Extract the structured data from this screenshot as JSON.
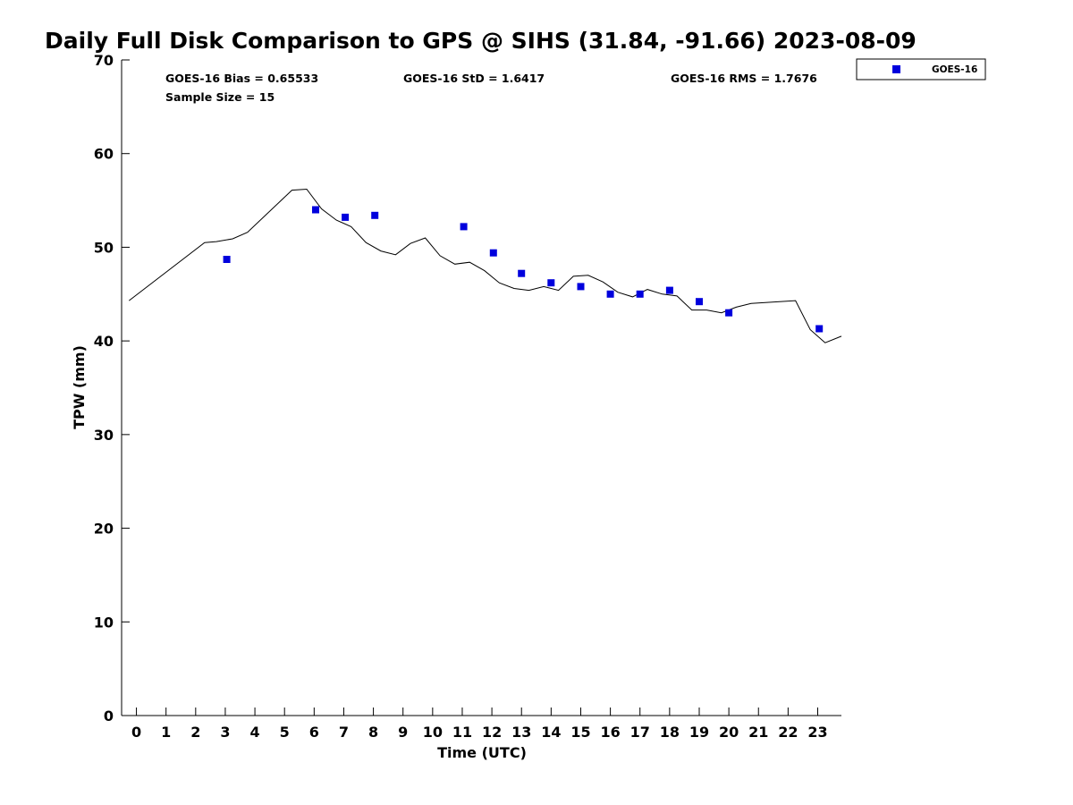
{
  "chart_data": {
    "type": "scatter",
    "title": "Daily Full Disk Comparison to GPS @ SIHS (31.84, -91.66) 2023-08-09",
    "xlabel": "Time (UTC)",
    "ylabel": "TPW (mm)",
    "xlim": [
      -0.5,
      23.8
    ],
    "ylim": [
      0,
      70
    ],
    "x_ticks": [
      0,
      1,
      2,
      3,
      4,
      5,
      6,
      7,
      8,
      9,
      10,
      11,
      12,
      13,
      14,
      15,
      16,
      17,
      18,
      19,
      20,
      21,
      22,
      23
    ],
    "y_ticks": [
      0,
      10,
      20,
      30,
      40,
      50,
      60,
      70
    ],
    "grid": false,
    "legend_position": "top-right",
    "stats": {
      "bias": "GOES-16 Bias = 0.65533",
      "std": "GOES-16 StD = 1.6417",
      "rms": "GOES-16 RMS = 1.7676",
      "sample_size": "Sample Size = 15"
    },
    "series": [
      {
        "name": "GOES-16",
        "kind": "scatter",
        "marker": "square",
        "color": "#0000dd",
        "points": [
          [
            3.05,
            48.7
          ],
          [
            6.05,
            54.0
          ],
          [
            7.05,
            53.2
          ],
          [
            8.05,
            53.4
          ],
          [
            11.05,
            52.2
          ],
          [
            12.05,
            49.4
          ],
          [
            13.0,
            47.2
          ],
          [
            14.0,
            46.2
          ],
          [
            15.0,
            45.8
          ],
          [
            16.0,
            45.0
          ],
          [
            17.0,
            45.0
          ],
          [
            18.0,
            45.4
          ],
          [
            19.0,
            44.2
          ],
          [
            20.0,
            43.0
          ],
          [
            23.05,
            41.3
          ]
        ]
      },
      {
        "kind": "line",
        "color": "#000000",
        "points": [
          [
            -0.25,
            44.3
          ],
          [
            2.3,
            50.5
          ],
          [
            2.7,
            50.6
          ],
          [
            3.25,
            50.9
          ],
          [
            3.75,
            51.6
          ],
          [
            5.25,
            56.1
          ],
          [
            5.75,
            56.2
          ],
          [
            6.25,
            54.1
          ],
          [
            6.75,
            52.9
          ],
          [
            7.25,
            52.2
          ],
          [
            7.75,
            50.5
          ],
          [
            8.25,
            49.6
          ],
          [
            8.75,
            49.2
          ],
          [
            9.25,
            50.4
          ],
          [
            9.75,
            51.0
          ],
          [
            10.25,
            49.1
          ],
          [
            10.75,
            48.2
          ],
          [
            11.25,
            48.4
          ],
          [
            11.75,
            47.5
          ],
          [
            12.25,
            46.2
          ],
          [
            12.75,
            45.6
          ],
          [
            13.25,
            45.4
          ],
          [
            13.75,
            45.8
          ],
          [
            14.25,
            45.4
          ],
          [
            14.75,
            46.9
          ],
          [
            15.25,
            47.0
          ],
          [
            15.75,
            46.3
          ],
          [
            16.25,
            45.2
          ],
          [
            16.75,
            44.7
          ],
          [
            17.25,
            45.5
          ],
          [
            17.75,
            45.0
          ],
          [
            18.25,
            44.8
          ],
          [
            18.75,
            43.3
          ],
          [
            19.25,
            43.3
          ],
          [
            19.75,
            43.0
          ],
          [
            20.25,
            43.6
          ],
          [
            20.75,
            44.0
          ],
          [
            22.25,
            44.3
          ],
          [
            22.75,
            41.2
          ],
          [
            23.25,
            39.8
          ],
          [
            23.8,
            40.5
          ]
        ]
      }
    ]
  }
}
